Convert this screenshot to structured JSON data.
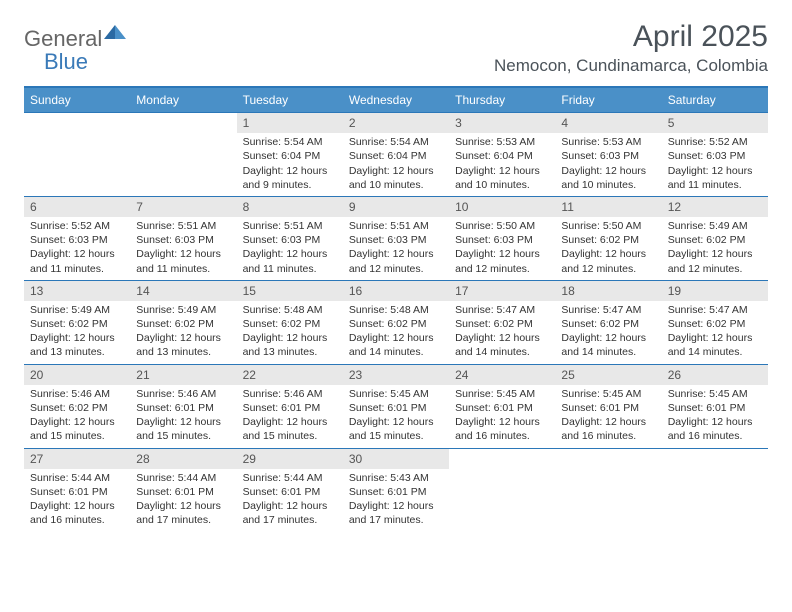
{
  "logo": {
    "general": "General",
    "blue": "Blue"
  },
  "title": "April 2025",
  "location": "Nemocon, Cundinamarca, Colombia",
  "colors": {
    "header_bg": "#4a90c8",
    "header_text": "#ffffff",
    "border": "#2b77b8",
    "daynum_bg": "#e8e8e8",
    "body_text": "#333333"
  },
  "day_names": [
    "Sunday",
    "Monday",
    "Tuesday",
    "Wednesday",
    "Thursday",
    "Friday",
    "Saturday"
  ],
  "weeks": [
    [
      {
        "empty": true
      },
      {
        "empty": true
      },
      {
        "day": "1",
        "sunrise": "Sunrise: 5:54 AM",
        "sunset": "Sunset: 6:04 PM",
        "daylight": "Daylight: 12 hours and 9 minutes."
      },
      {
        "day": "2",
        "sunrise": "Sunrise: 5:54 AM",
        "sunset": "Sunset: 6:04 PM",
        "daylight": "Daylight: 12 hours and 10 minutes."
      },
      {
        "day": "3",
        "sunrise": "Sunrise: 5:53 AM",
        "sunset": "Sunset: 6:04 PM",
        "daylight": "Daylight: 12 hours and 10 minutes."
      },
      {
        "day": "4",
        "sunrise": "Sunrise: 5:53 AM",
        "sunset": "Sunset: 6:03 PM",
        "daylight": "Daylight: 12 hours and 10 minutes."
      },
      {
        "day": "5",
        "sunrise": "Sunrise: 5:52 AM",
        "sunset": "Sunset: 6:03 PM",
        "daylight": "Daylight: 12 hours and 11 minutes."
      }
    ],
    [
      {
        "day": "6",
        "sunrise": "Sunrise: 5:52 AM",
        "sunset": "Sunset: 6:03 PM",
        "daylight": "Daylight: 12 hours and 11 minutes."
      },
      {
        "day": "7",
        "sunrise": "Sunrise: 5:51 AM",
        "sunset": "Sunset: 6:03 PM",
        "daylight": "Daylight: 12 hours and 11 minutes."
      },
      {
        "day": "8",
        "sunrise": "Sunrise: 5:51 AM",
        "sunset": "Sunset: 6:03 PM",
        "daylight": "Daylight: 12 hours and 11 minutes."
      },
      {
        "day": "9",
        "sunrise": "Sunrise: 5:51 AM",
        "sunset": "Sunset: 6:03 PM",
        "daylight": "Daylight: 12 hours and 12 minutes."
      },
      {
        "day": "10",
        "sunrise": "Sunrise: 5:50 AM",
        "sunset": "Sunset: 6:03 PM",
        "daylight": "Daylight: 12 hours and 12 minutes."
      },
      {
        "day": "11",
        "sunrise": "Sunrise: 5:50 AM",
        "sunset": "Sunset: 6:02 PM",
        "daylight": "Daylight: 12 hours and 12 minutes."
      },
      {
        "day": "12",
        "sunrise": "Sunrise: 5:49 AM",
        "sunset": "Sunset: 6:02 PM",
        "daylight": "Daylight: 12 hours and 12 minutes."
      }
    ],
    [
      {
        "day": "13",
        "sunrise": "Sunrise: 5:49 AM",
        "sunset": "Sunset: 6:02 PM",
        "daylight": "Daylight: 12 hours and 13 minutes."
      },
      {
        "day": "14",
        "sunrise": "Sunrise: 5:49 AM",
        "sunset": "Sunset: 6:02 PM",
        "daylight": "Daylight: 12 hours and 13 minutes."
      },
      {
        "day": "15",
        "sunrise": "Sunrise: 5:48 AM",
        "sunset": "Sunset: 6:02 PM",
        "daylight": "Daylight: 12 hours and 13 minutes."
      },
      {
        "day": "16",
        "sunrise": "Sunrise: 5:48 AM",
        "sunset": "Sunset: 6:02 PM",
        "daylight": "Daylight: 12 hours and 14 minutes."
      },
      {
        "day": "17",
        "sunrise": "Sunrise: 5:47 AM",
        "sunset": "Sunset: 6:02 PM",
        "daylight": "Daylight: 12 hours and 14 minutes."
      },
      {
        "day": "18",
        "sunrise": "Sunrise: 5:47 AM",
        "sunset": "Sunset: 6:02 PM",
        "daylight": "Daylight: 12 hours and 14 minutes."
      },
      {
        "day": "19",
        "sunrise": "Sunrise: 5:47 AM",
        "sunset": "Sunset: 6:02 PM",
        "daylight": "Daylight: 12 hours and 14 minutes."
      }
    ],
    [
      {
        "day": "20",
        "sunrise": "Sunrise: 5:46 AM",
        "sunset": "Sunset: 6:02 PM",
        "daylight": "Daylight: 12 hours and 15 minutes."
      },
      {
        "day": "21",
        "sunrise": "Sunrise: 5:46 AM",
        "sunset": "Sunset: 6:01 PM",
        "daylight": "Daylight: 12 hours and 15 minutes."
      },
      {
        "day": "22",
        "sunrise": "Sunrise: 5:46 AM",
        "sunset": "Sunset: 6:01 PM",
        "daylight": "Daylight: 12 hours and 15 minutes."
      },
      {
        "day": "23",
        "sunrise": "Sunrise: 5:45 AM",
        "sunset": "Sunset: 6:01 PM",
        "daylight": "Daylight: 12 hours and 15 minutes."
      },
      {
        "day": "24",
        "sunrise": "Sunrise: 5:45 AM",
        "sunset": "Sunset: 6:01 PM",
        "daylight": "Daylight: 12 hours and 16 minutes."
      },
      {
        "day": "25",
        "sunrise": "Sunrise: 5:45 AM",
        "sunset": "Sunset: 6:01 PM",
        "daylight": "Daylight: 12 hours and 16 minutes."
      },
      {
        "day": "26",
        "sunrise": "Sunrise: 5:45 AM",
        "sunset": "Sunset: 6:01 PM",
        "daylight": "Daylight: 12 hours and 16 minutes."
      }
    ],
    [
      {
        "day": "27",
        "sunrise": "Sunrise: 5:44 AM",
        "sunset": "Sunset: 6:01 PM",
        "daylight": "Daylight: 12 hours and 16 minutes."
      },
      {
        "day": "28",
        "sunrise": "Sunrise: 5:44 AM",
        "sunset": "Sunset: 6:01 PM",
        "daylight": "Daylight: 12 hours and 17 minutes."
      },
      {
        "day": "29",
        "sunrise": "Sunrise: 5:44 AM",
        "sunset": "Sunset: 6:01 PM",
        "daylight": "Daylight: 12 hours and 17 minutes."
      },
      {
        "day": "30",
        "sunrise": "Sunrise: 5:43 AM",
        "sunset": "Sunset: 6:01 PM",
        "daylight": "Daylight: 12 hours and 17 minutes."
      },
      {
        "empty": true
      },
      {
        "empty": true
      },
      {
        "empty": true
      }
    ]
  ]
}
